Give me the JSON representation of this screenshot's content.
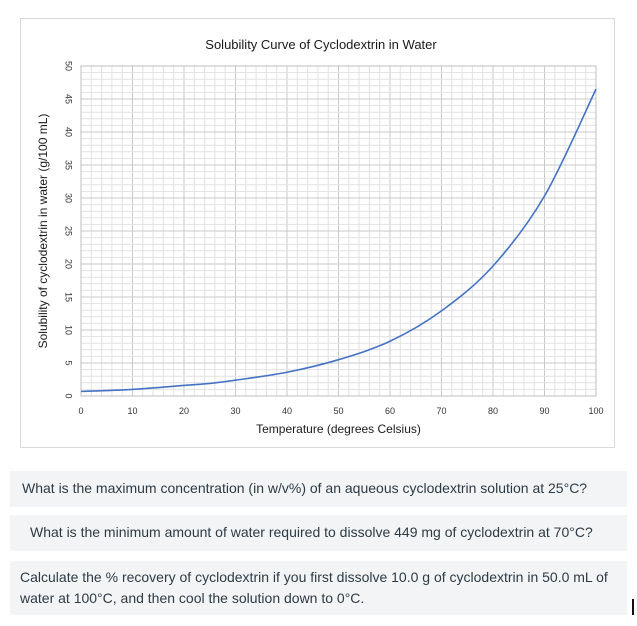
{
  "chart_data": {
    "type": "line",
    "title": "Solubility Curve of Cyclodextrin in Water",
    "xlabel": "Temperature (degrees Celsius)",
    "ylabel": "Solubility of cyclodextrin in water (g/100 mL)",
    "xlim": [
      0,
      100
    ],
    "ylim": [
      0,
      50
    ],
    "xticks": [
      "0",
      "10",
      "20",
      "30",
      "40",
      "50",
      "60",
      "70",
      "80",
      "90",
      "100"
    ],
    "yticks": [
      "0",
      "5",
      "10",
      "15",
      "20",
      "25",
      "30",
      "35",
      "40",
      "45",
      "50"
    ],
    "grid": true,
    "line_color": "#4472c4",
    "series": [
      {
        "x": [
          0,
          10,
          20,
          25,
          30,
          40,
          50,
          60,
          70,
          80,
          90,
          100
        ],
        "values": [
          0.7,
          1.0,
          1.6,
          1.9,
          2.4,
          3.6,
          5.5,
          8.3,
          12.9,
          19.7,
          30.3,
          46.5
        ]
      }
    ]
  },
  "questions": [
    "What is the maximum concentration (in w/v%) of an aqueous cyclodextrin solution at 25°C?",
    "What is the minimum amount of water required to dissolve 449 mg of cyclodextrin at 70°C?",
    "Calculate the % recovery of cyclodextrin if you first dissolve 10.0 g of cyclodextrin in 50.0 mL of water at 100°C, and then cool the solution down to 0°C."
  ]
}
